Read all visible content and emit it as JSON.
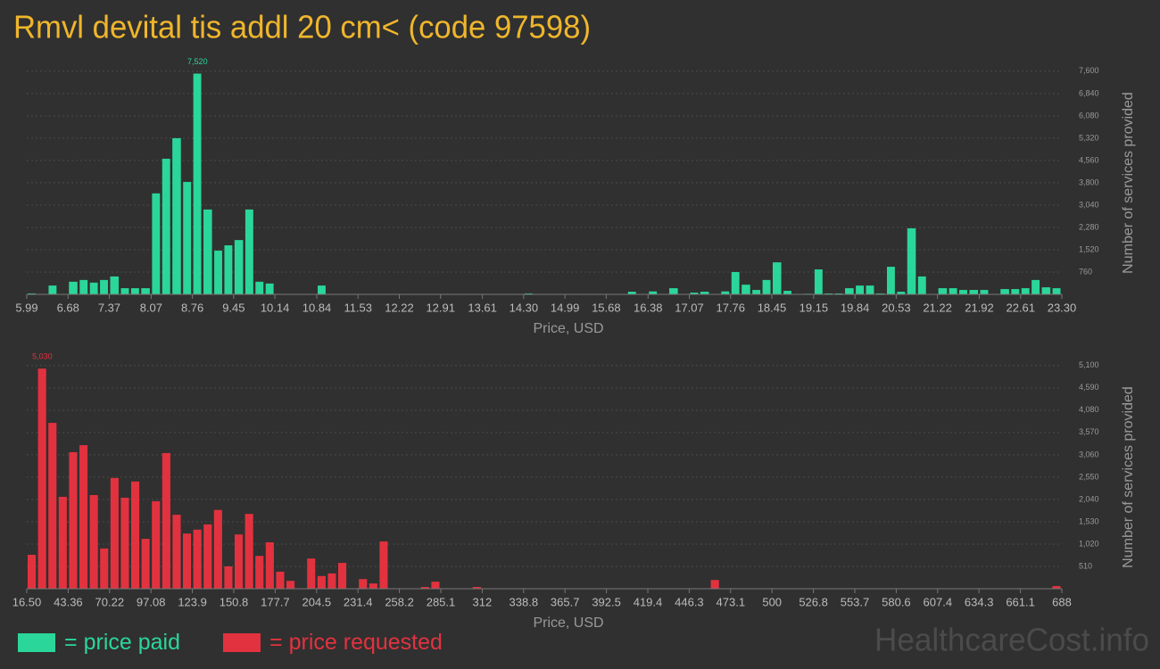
{
  "title": "Rmvl devital tis addl 20 cm< (code 97598)",
  "watermark": "HealthcareCost.info",
  "legend_separator": "=",
  "chart_data": [
    {
      "type": "histogram",
      "name": "price paid",
      "color": "#2bd69a",
      "grid": true,
      "xlabel": "Price, USD",
      "ylabel": "Number of services provided",
      "peak_label": "7,520",
      "xlim": [
        5.99,
        23.3
      ],
      "ylim": [
        0,
        7900
      ],
      "xticks": [
        5.99,
        6.68,
        7.37,
        8.07,
        8.76,
        9.45,
        10.14,
        10.84,
        11.53,
        12.22,
        12.91,
        13.61,
        {
          "value": 14.3,
          "label": "14.30"
        },
        14.99,
        15.68,
        16.38,
        17.07,
        17.76,
        18.45,
        19.15,
        19.84,
        20.53,
        21.22,
        21.92,
        22.61,
        {
          "value": 23.3,
          "label": "23.30"
        }
      ],
      "yticks": [
        760,
        {
          "value": 1520,
          "label": "1,520"
        },
        {
          "value": 2280,
          "label": "2,280"
        },
        {
          "value": 3040,
          "label": "3,040"
        },
        {
          "value": 3800,
          "label": "3,800"
        },
        {
          "value": 4560,
          "label": "4,560"
        },
        {
          "value": 5320,
          "label": "5,320"
        },
        {
          "value": 6080,
          "label": "6,080"
        },
        {
          "value": 6840,
          "label": "6,840"
        },
        {
          "value": 7600,
          "label": "7,600"
        }
      ],
      "bins": [
        5.99,
        6.16,
        6.34,
        6.51,
        6.68,
        6.86,
        7.03,
        7.2,
        7.37,
        7.55,
        7.72,
        7.89,
        8.07,
        8.24,
        8.41,
        8.59,
        8.76,
        8.93,
        9.11,
        9.28,
        9.45,
        9.63,
        9.8,
        9.97,
        10.14,
        10.32,
        10.49,
        10.66,
        10.84,
        11.01,
        11.18,
        11.36,
        11.53,
        11.7,
        11.88,
        12.05,
        12.22,
        12.39,
        12.57,
        12.74,
        12.91,
        13.09,
        13.26,
        13.43,
        13.61,
        13.78,
        13.95,
        14.13,
        14.3,
        14.47,
        14.65,
        14.82,
        14.99,
        15.16,
        15.34,
        15.51,
        15.68,
        15.86,
        16.03,
        16.2,
        16.38,
        16.55,
        16.72,
        16.9,
        17.07,
        17.24,
        17.42,
        17.59,
        17.76,
        17.93,
        18.11,
        18.28,
        18.45,
        18.63,
        18.8,
        18.97,
        19.15,
        19.32,
        19.49,
        19.66,
        19.84,
        20.01,
        20.18,
        20.36,
        20.53,
        20.7,
        20.88,
        21.05,
        21.22,
        21.4,
        21.57,
        21.74,
        21.92,
        22.09,
        22.26,
        22.44,
        22.61,
        22.78,
        22.95,
        23.13,
        23.3
      ],
      "values": [
        30,
        0,
        300,
        0,
        430,
        490,
        400,
        490,
        610,
        210,
        210,
        210,
        3440,
        4620,
        5320,
        3830,
        7520,
        2890,
        1490,
        1670,
        1850,
        2890,
        430,
        370,
        0,
        0,
        0,
        0,
        300,
        0,
        0,
        0,
        0,
        0,
        0,
        0,
        0,
        0,
        0,
        0,
        0,
        0,
        0,
        0,
        0,
        0,
        0,
        0,
        30,
        0,
        0,
        0,
        0,
        0,
        0,
        0,
        0,
        0,
        90,
        0,
        100,
        0,
        210,
        0,
        60,
        90,
        0,
        100,
        760,
        330,
        150,
        490,
        1090,
        120,
        0,
        20,
        850,
        30,
        30,
        210,
        300,
        300,
        30,
        940,
        90,
        2250,
        610,
        0,
        210,
        210,
        150,
        150,
        150,
        0,
        180,
        180,
        210,
        490,
        240,
        210
      ]
    },
    {
      "type": "histogram",
      "name": "price requested",
      "color": "#e2323f",
      "grid": true,
      "xlabel": "Price, USD",
      "ylabel": "Number of services provided",
      "peak_label": "5,030",
      "xlim": [
        16.5,
        688
      ],
      "ylim": [
        0,
        5300
      ],
      "xticks": [
        {
          "value": 16.5,
          "label": "16.50"
        },
        43.36,
        70.22,
        97.08,
        {
          "value": 123.94,
          "label": "123.9"
        },
        150.8,
        {
          "value": 177.66,
          "label": "177.7"
        },
        {
          "value": 204.52,
          "label": "204.5"
        },
        {
          "value": 231.38,
          "label": "231.4"
        },
        {
          "value": 258.24,
          "label": "258.2"
        },
        285.1,
        {
          "value": 311.96,
          "label": "312"
        },
        {
          "value": 338.82,
          "label": "338.8"
        },
        {
          "value": 365.68,
          "label": "365.7"
        },
        {
          "value": 392.54,
          "label": "392.5"
        },
        419.4,
        {
          "value": 446.26,
          "label": "446.3"
        },
        {
          "value": 473.12,
          "label": "473.1"
        },
        {
          "value": 499.98,
          "label": "500"
        },
        {
          "value": 526.84,
          "label": "526.8"
        },
        553.7,
        {
          "value": 580.56,
          "label": "580.6"
        },
        {
          "value": 607.42,
          "label": "607.4"
        },
        {
          "value": 634.28,
          "label": "634.3"
        },
        {
          "value": 661.14,
          "label": "661.1"
        },
        688
      ],
      "yticks": [
        510,
        {
          "value": 1020,
          "label": "1,020"
        },
        {
          "value": 1530,
          "label": "1,530"
        },
        {
          "value": 2040,
          "label": "2,040"
        },
        {
          "value": 2550,
          "label": "2,550"
        },
        {
          "value": 3060,
          "label": "3,060"
        },
        {
          "value": 3570,
          "label": "3,570"
        },
        {
          "value": 4080,
          "label": "4,080"
        },
        {
          "value": 4590,
          "label": "4,590"
        },
        {
          "value": 5100,
          "label": "5,100"
        }
      ],
      "bins": [
        16.5,
        23.22,
        29.93,
        36.65,
        43.36,
        50.08,
        56.79,
        63.51,
        70.22,
        76.94,
        83.65,
        90.37,
        97.08,
        103.8,
        110.51,
        117.23,
        123.94,
        130.66,
        137.37,
        144.09,
        150.8,
        157.52,
        164.23,
        170.95,
        177.66,
        184.38,
        191.09,
        197.81,
        204.52,
        211.24,
        217.95,
        224.67,
        231.38,
        238.1,
        244.81,
        251.53,
        258.24,
        264.96,
        271.67,
        278.39,
        285.1,
        291.82,
        298.53,
        305.25,
        311.96,
        318.68,
        325.39,
        332.11,
        338.82,
        345.54,
        352.25,
        358.97,
        365.68,
        372.4,
        379.11,
        385.83,
        392.54,
        399.26,
        405.97,
        412.69,
        419.4,
        426.12,
        432.83,
        439.55,
        446.26,
        452.98,
        459.69,
        466.41,
        473.12,
        479.84,
        486.55,
        493.27,
        499.98,
        506.7,
        513.41,
        520.13,
        526.84,
        533.56,
        540.27,
        546.99,
        553.7,
        560.42,
        567.13,
        573.85,
        580.56,
        587.28,
        593.99,
        600.71,
        607.42,
        614.14,
        620.85,
        627.57,
        634.28,
        641,
        647.71,
        654.43,
        661.14,
        667.86,
        674.57,
        681.29,
        688
      ],
      "values": [
        775,
        5030,
        3790,
        2100,
        3120,
        3280,
        2140,
        920,
        2530,
        2080,
        2450,
        1140,
        2000,
        3100,
        1690,
        1260,
        1350,
        1470,
        1800,
        510,
        1240,
        1710,
        750,
        1060,
        390,
        180,
        0,
        690,
        290,
        350,
        590,
        0,
        220,
        120,
        1080,
        0,
        0,
        0,
        40,
        160,
        0,
        0,
        0,
        40,
        0,
        0,
        0,
        0,
        0,
        0,
        0,
        0,
        0,
        0,
        0,
        0,
        0,
        0,
        0,
        0,
        0,
        0,
        0,
        0,
        0,
        0,
        200,
        0,
        0,
        0,
        0,
        0,
        0,
        0,
        0,
        0,
        0,
        0,
        0,
        0,
        0,
        0,
        0,
        0,
        0,
        0,
        0,
        0,
        0,
        0,
        0,
        0,
        0,
        0,
        0,
        0,
        0,
        0,
        0,
        60
      ]
    }
  ]
}
